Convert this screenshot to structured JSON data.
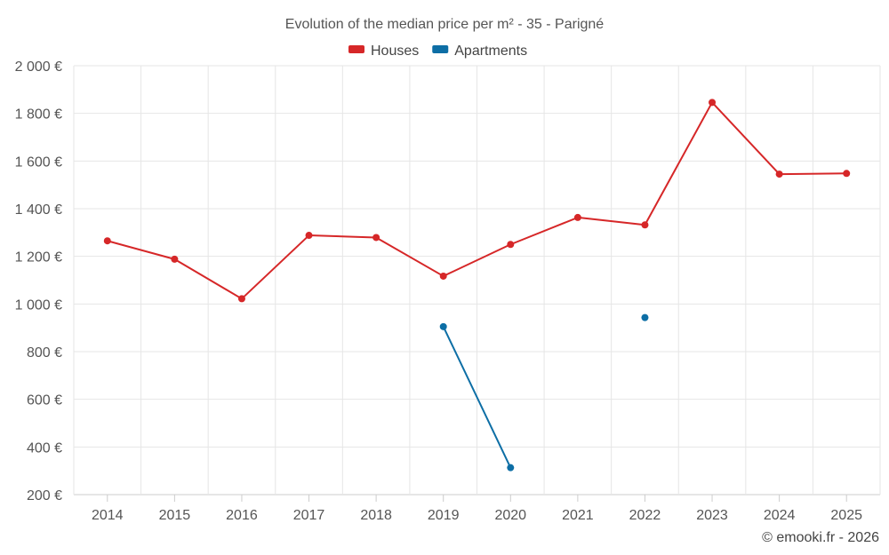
{
  "chart_data": {
    "type": "line",
    "title": "Evolution of the median price per m² - 35 - Parigné",
    "categories": [
      "2014",
      "2015",
      "2016",
      "2017",
      "2018",
      "2019",
      "2020",
      "2021",
      "2022",
      "2023",
      "2024",
      "2025"
    ],
    "series": [
      {
        "name": "Houses",
        "color": "#d62728",
        "values": [
          1265,
          1188,
          1022,
          1288,
          1279,
          1117,
          1250,
          1363,
          1332,
          1846,
          1545,
          1548
        ]
      },
      {
        "name": "Apartments",
        "color": "#0d6ea5",
        "values": [
          null,
          null,
          null,
          null,
          null,
          905,
          313,
          null,
          943,
          null,
          null,
          null
        ]
      }
    ],
    "ylim": [
      200,
      2000
    ],
    "yticks": [
      200,
      400,
      600,
      800,
      1000,
      1200,
      1400,
      1600,
      1800,
      2000
    ],
    "ytick_labels": [
      "200 €",
      "400 €",
      "600 €",
      "800 €",
      "1 000 €",
      "1 200 €",
      "1 400 €",
      "1 600 €",
      "1 800 €",
      "2 000 €"
    ],
    "xlabel": "",
    "ylabel": "",
    "legend_position": "top-center",
    "grid": true
  },
  "credit": "© emooki.fr - 2026"
}
